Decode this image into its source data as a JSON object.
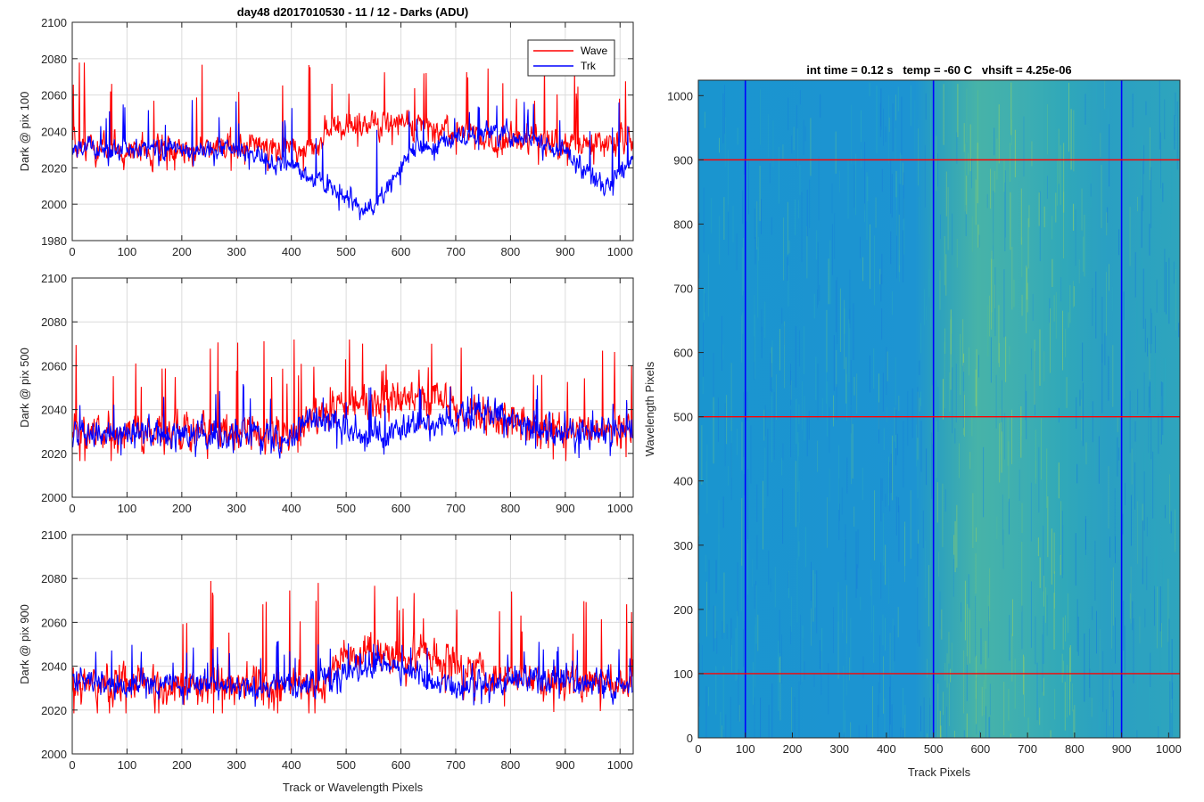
{
  "figure": {
    "title": "day48 d2017010530 - 11 / 12 - Darks (ADU)",
    "colors": {
      "wave": "#ff0000",
      "trk": "#0000ff",
      "grid": "#d9d9d9",
      "axis": "#262626"
    }
  },
  "legend": {
    "items": [
      "Wave",
      "Trk"
    ],
    "location": "top-right"
  },
  "image_panel": {
    "title": "int time = 0.12 s   temp = -60 C   vhsift = 4.25e-06",
    "xlabel": "Track Pixels",
    "ylabel": "Wavelength Pixels"
  },
  "chart_data": [
    {
      "type": "line",
      "title": "day48 d2017010530 - 11 / 12 - Darks (ADU)",
      "xlabel": "",
      "ylabel": "Dark @ pix 100",
      "xlim": [
        0,
        1024
      ],
      "ylim": [
        1980,
        2100
      ],
      "xticks": [
        0,
        100,
        200,
        300,
        400,
        500,
        600,
        700,
        800,
        900,
        1000
      ],
      "yticks": [
        1980,
        2000,
        2020,
        2040,
        2060,
        2080,
        2100
      ],
      "grid": true,
      "n_points": 1024,
      "series": [
        {
          "name": "Wave",
          "color": "#ff0000",
          "baseline": 2030,
          "noise": 8,
          "spikes": 2075,
          "profile": [
            [
              0,
              2031
            ],
            [
              440,
              2030
            ],
            [
              480,
              2043
            ],
            [
              620,
              2045
            ],
            [
              760,
              2035
            ],
            [
              900,
              2033
            ],
            [
              1024,
              2035
            ]
          ]
        },
        {
          "name": "Trk",
          "color": "#0000ff",
          "baseline": 2030,
          "noise": 6,
          "spikes": 2055,
          "profile": [
            [
              0,
              2030
            ],
            [
              300,
              2030
            ],
            [
              390,
              2022
            ],
            [
              450,
              2012
            ],
            [
              540,
              1996
            ],
            [
              570,
              2005
            ],
            [
              620,
              2030
            ],
            [
              760,
              2040
            ],
            [
              900,
              2030
            ],
            [
              970,
              2008
            ],
            [
              1024,
              2025
            ]
          ]
        }
      ],
      "show_legend": true
    },
    {
      "type": "line",
      "title": "",
      "xlabel": "",
      "ylabel": "Dark @ pix 500",
      "xlim": [
        0,
        1024
      ],
      "ylim": [
        2000,
        2100
      ],
      "xticks": [
        0,
        100,
        200,
        300,
        400,
        500,
        600,
        700,
        800,
        900,
        1000
      ],
      "yticks": [
        2000,
        2020,
        2040,
        2060,
        2080,
        2100
      ],
      "grid": true,
      "n_points": 1024,
      "series": [
        {
          "name": "Wave",
          "color": "#ff0000",
          "baseline": 2030,
          "noise": 9,
          "spikes": 2070,
          "profile": [
            [
              0,
              2030
            ],
            [
              400,
              2030
            ],
            [
              480,
              2043
            ],
            [
              640,
              2045
            ],
            [
              760,
              2035
            ],
            [
              900,
              2030
            ],
            [
              1024,
              2032
            ]
          ]
        },
        {
          "name": "Trk",
          "color": "#0000ff",
          "baseline": 2028,
          "noise": 7,
          "spikes": 2050,
          "profile": [
            [
              0,
              2030
            ],
            [
              400,
              2028
            ],
            [
              440,
              2038
            ],
            [
              520,
              2028
            ],
            [
              620,
              2032
            ],
            [
              760,
              2040
            ],
            [
              900,
              2028
            ],
            [
              1024,
              2030
            ]
          ]
        }
      ],
      "show_legend": false
    },
    {
      "type": "line",
      "title": "",
      "xlabel": "Track or Wavelength Pixels",
      "ylabel": "Dark @ pix 900",
      "xlim": [
        0,
        1024
      ],
      "ylim": [
        2000,
        2100
      ],
      "xticks": [
        0,
        100,
        200,
        300,
        400,
        500,
        600,
        700,
        800,
        900,
        1000
      ],
      "yticks": [
        2000,
        2020,
        2040,
        2060,
        2080,
        2100
      ],
      "grid": true,
      "n_points": 1024,
      "series": [
        {
          "name": "Wave",
          "color": "#ff0000",
          "baseline": 2032,
          "noise": 9,
          "spikes": 2075,
          "profile": [
            [
              0,
              2032
            ],
            [
              460,
              2032
            ],
            [
              500,
              2045
            ],
            [
              640,
              2044
            ],
            [
              760,
              2036
            ],
            [
              900,
              2032
            ],
            [
              1024,
              2034
            ]
          ]
        },
        {
          "name": "Trk",
          "color": "#0000ff",
          "baseline": 2030,
          "noise": 6,
          "spikes": 2050,
          "profile": [
            [
              0,
              2033
            ],
            [
              400,
              2030
            ],
            [
              560,
              2042
            ],
            [
              700,
              2030
            ],
            [
              840,
              2035
            ],
            [
              1024,
              2032
            ]
          ]
        }
      ],
      "show_legend": false
    },
    {
      "type": "heatmap",
      "title": "int time = 0.12 s   temp = -60 C   vhsift = 4.25e-06",
      "xlabel": "Track Pixels",
      "ylabel": "Wavelength Pixels",
      "xlim": [
        0,
        1024
      ],
      "ylim": [
        0,
        1024
      ],
      "xticks": [
        0,
        100,
        200,
        300,
        400,
        500,
        600,
        700,
        800,
        900,
        1000
      ],
      "yticks": [
        0,
        100,
        200,
        300,
        400,
        500,
        600,
        700,
        800,
        900,
        1000
      ],
      "colormap": "parula",
      "bright_region_x": [
        500,
        800
      ],
      "vertical_markers": {
        "x": [
          100,
          500,
          900
        ],
        "color": "#0000ff"
      },
      "horizontal_markers": {
        "y": [
          100,
          500,
          900
        ],
        "color": "#ff0000"
      }
    }
  ]
}
